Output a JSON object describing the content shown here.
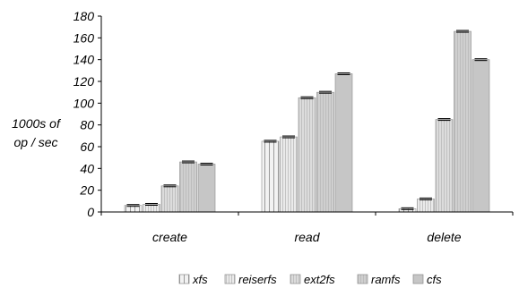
{
  "chart_data": {
    "type": "bar",
    "title": "",
    "xlabel": "",
    "ylabel_lines": [
      "1000s of",
      "op / sec"
    ],
    "ylim": [
      0,
      180
    ],
    "yticks": [
      0,
      20,
      40,
      60,
      80,
      100,
      120,
      140,
      160,
      180
    ],
    "categories": [
      "create",
      "read",
      "delete"
    ],
    "grid": false,
    "legend_position": "bottom",
    "error_bars": true,
    "series": [
      {
        "name": "xfs",
        "values": [
          6,
          65,
          3
        ],
        "color": "#f2f2f2",
        "pattern": "vlines-wide"
      },
      {
        "name": "reiserfs",
        "values": [
          7,
          69,
          12
        ],
        "color": "#eaeaea",
        "pattern": "vlines-fine"
      },
      {
        "name": "ext2fs",
        "values": [
          24,
          105,
          85
        ],
        "color": "#dcdcdc",
        "pattern": "vlines-fine"
      },
      {
        "name": "ramfs",
        "values": [
          46,
          110,
          166
        ],
        "color": "#cfcfcf",
        "pattern": "vlines-fine"
      },
      {
        "name": "cfs",
        "values": [
          44,
          127,
          140
        ],
        "color": "#c6c6c6",
        "pattern": "solid"
      }
    ]
  }
}
